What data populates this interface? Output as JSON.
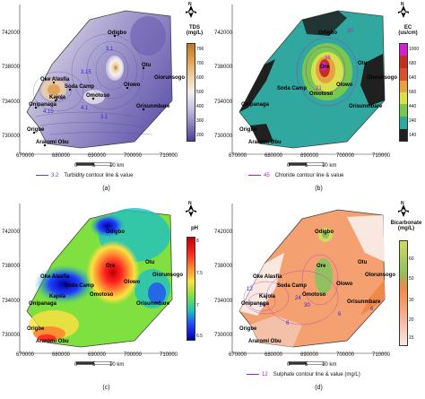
{
  "panels": {
    "a": {
      "caption": "(a)",
      "legend_title": "TDS",
      "legend_unit": "(mg/L)",
      "legend_ticks": [
        "796",
        "700",
        "600",
        "500",
        "400",
        "300",
        "200"
      ],
      "colors": [
        "#c07820",
        "#e0a050",
        "#f0d0a0",
        "#f4f0f0",
        "#c8c0e0",
        "#8c80c0",
        "#4a3e98"
      ],
      "contour_value": "3.2",
      "contour_text": "Turbidity contour line & value",
      "contour_color": "#4a4ad0",
      "contour_labels": [
        "3.1",
        "3.15",
        "4.15",
        "4.1",
        "2.4",
        "3.1"
      ]
    },
    "b": {
      "caption": "(b)",
      "legend_title": "EC",
      "legend_unit": "(us/cm)",
      "legend_ticks": [
        "1000",
        "680",
        "640",
        "560",
        "440",
        "240",
        "140"
      ],
      "colors": [
        "#d020d0",
        "#c03020",
        "#d85030",
        "#e8a040",
        "#d8e050",
        "#78c850",
        "#30a8a0",
        "#202020"
      ],
      "contour_value": "45",
      "contour_text": "Chloride contour line & value",
      "contour_color": "#b020c0",
      "contour_labels": [
        "20",
        "21",
        "36"
      ]
    },
    "c": {
      "caption": "(c)",
      "legend_title": "pH",
      "legend_unit": "",
      "legend_ticks": [
        "8",
        "7.5",
        "7",
        "6.5"
      ],
      "colors": [
        "#c00000",
        "#ff2020",
        "#ff8030",
        "#ffe040",
        "#80e040",
        "#20c0c0",
        "#2040ff",
        "#0000a0"
      ]
    },
    "d": {
      "caption": "(d)",
      "legend_title": "Bicarbonate",
      "legend_unit": "(mg/L)",
      "legend_ticks": [
        "60",
        "50",
        "30",
        "20",
        "15"
      ],
      "colors": [
        "#f8e8e0",
        "#f4c0a8",
        "#f4a070",
        "#f08848",
        "#90c060",
        "#d4d860"
      ],
      "contour_value": "12",
      "contour_text": "Sulphate contour line & value (mg/L)",
      "contour_color": "#b020c0",
      "contour_labels": [
        "12",
        "14",
        "24",
        "30",
        "6",
        "6",
        "6"
      ]
    }
  },
  "towns": [
    "Odigbo",
    "Oke Alasfia",
    "Kajola",
    "Soda Camp",
    "Omotoso",
    "Olowo",
    "Otu",
    "Oiorunsogo",
    "Orisunmbare",
    "Onipanaga",
    "Origbe",
    "Araromi Obu"
  ],
  "towns_c": [
    "Odigbo",
    "Oke Alasfia",
    "Kajola",
    "Soda Camp",
    "Omotoso",
    "Olowo",
    "Otu",
    "Oiorunsogo",
    "Orisunmbare",
    "Onipanaga",
    "Origbe",
    "Araromi Obu",
    "Ore"
  ],
  "towns_b": [
    "Odigbo",
    "Soda Camp",
    "Omotoso",
    "Olowo",
    "Otu",
    "Olorunsogo",
    "Orisunmbare",
    "Onipanaga",
    "Origbe",
    "Araromi Obu",
    "Ore"
  ],
  "towns_d": [
    "Odigbo",
    "Oke Alasfia",
    "Kajola",
    "Soda Camp",
    "Omotoso",
    "Olowo",
    "Otu",
    "Olorunsogo",
    "Orisunmbare",
    "Onipanaga",
    "Origbe",
    "Araromi Obu",
    "Ore"
  ],
  "y_ticks": [
    "742000",
    "738000",
    "734000",
    "730000"
  ],
  "x_ticks": [
    "670000",
    "680000",
    "690000",
    "700000",
    "710000"
  ],
  "scale": {
    "zero": "0",
    "five": "5",
    "ten": "10 km"
  },
  "north_label": "N"
}
